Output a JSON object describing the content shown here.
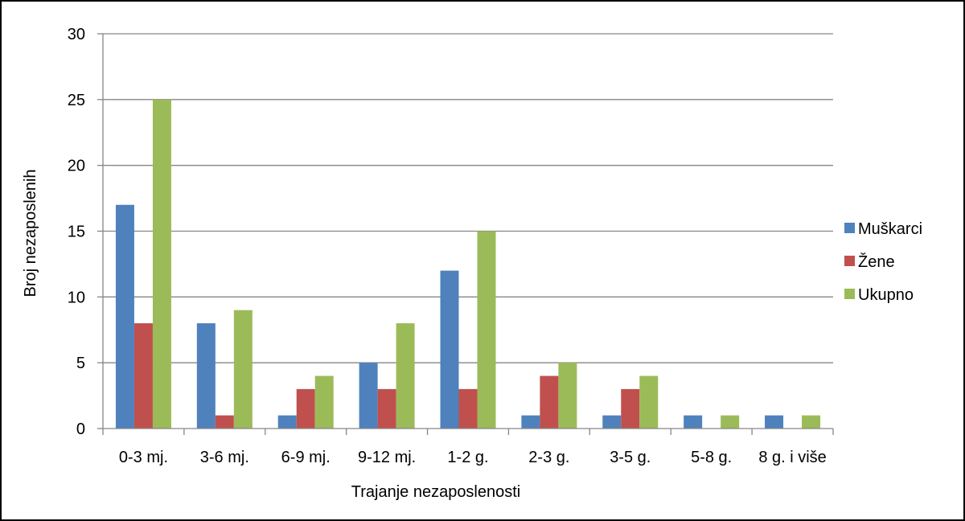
{
  "chart_data": {
    "type": "bar",
    "categories": [
      "0-3 mj.",
      "3-6 mj.",
      "6-9 mj.",
      "9-12 mj.",
      "1-2 g.",
      "2-3 g.",
      "3-5 g.",
      "5-8 g.",
      "8 g. i više"
    ],
    "series": [
      {
        "name": "Muškarci",
        "color": "#4f81bd",
        "values": [
          17,
          8,
          1,
          5,
          12,
          1,
          1,
          1,
          1
        ]
      },
      {
        "name": "Žene",
        "color": "#c0504d",
        "values": [
          8,
          1,
          3,
          3,
          3,
          4,
          3,
          0,
          0
        ]
      },
      {
        "name": "Ukupno",
        "color": "#9bbb59",
        "values": [
          25,
          9,
          4,
          8,
          15,
          5,
          4,
          1,
          1
        ]
      }
    ],
    "xlabel": "Trajanje nezaposlenosti",
    "ylabel": "Broj nezaposlenih",
    "ylim": [
      0,
      30
    ],
    "yticks": [
      0,
      5,
      10,
      15,
      20,
      25,
      30
    ],
    "grid": true,
    "gridline_color": "#868686",
    "legend_position": "right"
  }
}
